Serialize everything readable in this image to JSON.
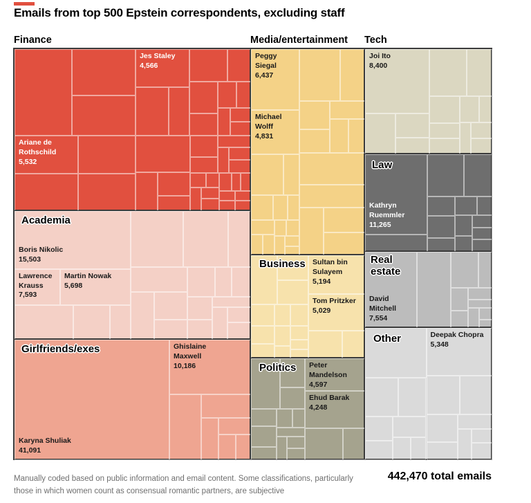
{
  "title": "Emails from top 500 Epstein correspondents, excluding staff",
  "footnote": "Manually coded based on public information and email content. Some classifications, particularly those in which women count as consensual romantic partners, are subjective",
  "total_label": "442,470 total emails",
  "accent_color": "#E1503F",
  "chart_data": {
    "type": "treemap",
    "title": "Emails from top 500 Epstein correspondents, excluding staff",
    "unit": "emails",
    "total": 442470,
    "total_label": "442,470 total emails",
    "layout_note": "Treemap grouped by category; cell area proportional to email count; only largest correspondents labeled",
    "groups": [
      {
        "name": "Finance",
        "color": "#E1503F",
        "text_color": "#ffffff",
        "label_position": "outside-top",
        "people": [
          {
            "name": "Ariane de Rothschild",
            "value": 5532,
            "value_label": "5,532"
          },
          {
            "name": "Jes Staley",
            "value": 4566,
            "value_label": "4,566"
          }
        ]
      },
      {
        "name": "Academia",
        "color": "#F4D0C6",
        "text_color": "#1a1a1a",
        "label_position": "inside",
        "people": [
          {
            "name": "Boris Nikolic",
            "value": 15503,
            "value_label": "15,503"
          },
          {
            "name": "Lawrence Krauss",
            "value": 7593,
            "value_label": "7,593"
          },
          {
            "name": "Martin Nowak",
            "value": 5698,
            "value_label": "5,698"
          }
        ]
      },
      {
        "name": "Girlfriends/exes",
        "color": "#EFA591",
        "text_color": "#1a1a1a",
        "label_position": "inside",
        "people": [
          {
            "name": "Karyna Shuliak",
            "value": 41091,
            "value_label": "41,091"
          },
          {
            "name": "Ghislaine Maxwell",
            "value": 10186,
            "value_label": "10,186"
          }
        ]
      },
      {
        "name": "Media/entertainment",
        "color": "#F4D287",
        "text_color": "#1a1a1a",
        "label_position": "outside-top",
        "people": [
          {
            "name": "Peggy Siegal",
            "value": 6437,
            "value_label": "6,437"
          },
          {
            "name": "Michael Wolff",
            "value": 4831,
            "value_label": "4,831"
          }
        ]
      },
      {
        "name": "Business",
        "color": "#F7E2AC",
        "text_color": "#1a1a1a",
        "label_position": "inside",
        "people": [
          {
            "name": "Sultan bin Sulayem",
            "value": 5194,
            "value_label": "5,194"
          },
          {
            "name": "Tom Pritzker",
            "value": 5029,
            "value_label": "5,029"
          }
        ]
      },
      {
        "name": "Politics",
        "color": "#A5A38E",
        "text_color": "#1a1a1a",
        "label_position": "inside",
        "people": [
          {
            "name": "Peter Mandelson",
            "value": 4597,
            "value_label": "4,597"
          },
          {
            "name": "Ehud Barak",
            "value": 4248,
            "value_label": "4,248"
          }
        ]
      },
      {
        "name": "Tech",
        "color": "#DBD7C1",
        "text_color": "#1a1a1a",
        "label_position": "outside-top",
        "people": [
          {
            "name": "Joi Ito",
            "value": 8400,
            "value_label": "8,400"
          }
        ]
      },
      {
        "name": "Law",
        "color": "#6E6E6E",
        "text_color": "#ffffff",
        "label_position": "inside",
        "people": [
          {
            "name": "Kathryn Ruemmler",
            "value": 11265,
            "value_label": "11,265"
          }
        ]
      },
      {
        "name": "Real estate",
        "color": "#BCBCBC",
        "text_color": "#1a1a1a",
        "label_position": "inside",
        "people": [
          {
            "name": "David Mitchell",
            "value": 7554,
            "value_label": "7,554"
          }
        ]
      },
      {
        "name": "Other",
        "color": "#DADADA",
        "text_color": "#1a1a1a",
        "label_position": "inside",
        "people": [
          {
            "name": "Deepak Chopra",
            "value": 5348,
            "value_label": "5,348"
          }
        ]
      }
    ]
  }
}
